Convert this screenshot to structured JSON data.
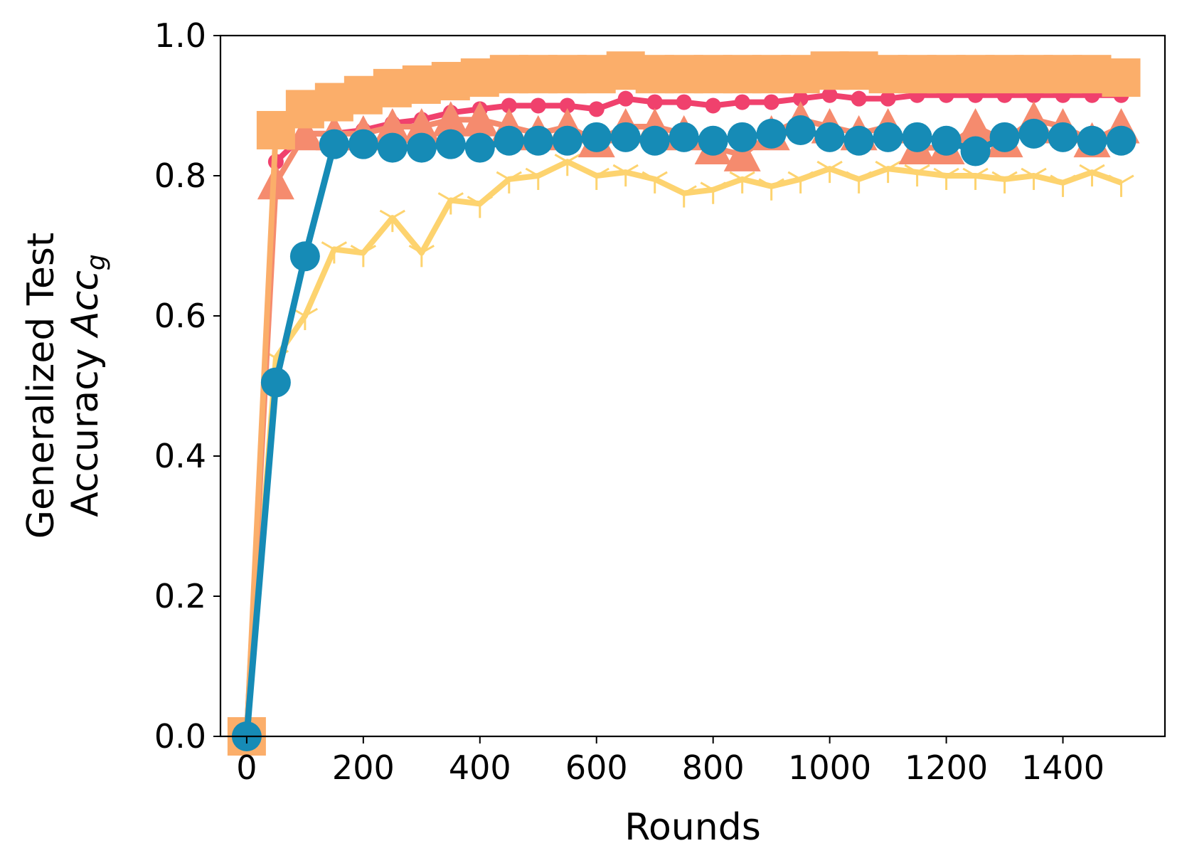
{
  "chart_data": {
    "type": "line",
    "xlabel": "Rounds",
    "ylabel_line1": "Generalized Test",
    "ylabel_line2_text": "Accuracy ",
    "ylabel_line2_math": "Acc",
    "ylabel_line2_sub": "g",
    "xlim": [
      -45,
      1575
    ],
    "ylim": [
      0.0,
      1.0
    ],
    "xticks": [
      0,
      200,
      400,
      600,
      800,
      1000,
      1200,
      1400
    ],
    "yticks": [
      0.0,
      0.2,
      0.4,
      0.6,
      0.8,
      1.0
    ],
    "ytick_labels": [
      "0.0",
      "0.2",
      "0.4",
      "0.6",
      "0.8",
      "1.0"
    ],
    "x": [
      0,
      50,
      100,
      150,
      200,
      250,
      300,
      350,
      400,
      450,
      500,
      550,
      600,
      650,
      700,
      750,
      800,
      850,
      900,
      950,
      1000,
      1050,
      1100,
      1150,
      1200,
      1250,
      1300,
      1350,
      1400,
      1450,
      1500
    ],
    "series": [
      {
        "color": "#FDD36F",
        "marker": "tri",
        "values": [
          0.0,
          0.54,
          0.6,
          0.695,
          0.69,
          0.74,
          0.69,
          0.765,
          0.76,
          0.795,
          0.8,
          0.82,
          0.8,
          0.805,
          0.795,
          0.775,
          0.78,
          0.795,
          0.785,
          0.795,
          0.81,
          0.795,
          0.81,
          0.805,
          0.8,
          0.8,
          0.795,
          0.8,
          0.79,
          0.805,
          0.79
        ]
      },
      {
        "color": "#F0416D",
        "marker": "circle-small",
        "values": [
          0.0,
          0.82,
          0.86,
          0.86,
          0.865,
          0.875,
          0.88,
          0.89,
          0.895,
          0.9,
          0.9,
          0.9,
          0.895,
          0.91,
          0.905,
          0.905,
          0.9,
          0.905,
          0.905,
          0.91,
          0.915,
          0.91,
          0.91,
          0.915,
          0.915,
          0.915,
          0.915,
          0.915,
          0.915,
          0.915,
          0.915
        ]
      },
      {
        "color": "#F58B6E",
        "marker": "triangle",
        "values": [
          0.0,
          0.79,
          0.86,
          0.86,
          0.86,
          0.87,
          0.87,
          0.88,
          0.88,
          0.87,
          0.86,
          0.87,
          0.85,
          0.87,
          0.87,
          0.86,
          0.84,
          0.83,
          0.86,
          0.88,
          0.87,
          0.86,
          0.87,
          0.84,
          0.84,
          0.87,
          0.85,
          0.88,
          0.87,
          0.85,
          0.87
        ]
      },
      {
        "color": "#FBAE6A",
        "marker": "square",
        "values": [
          0.0,
          0.865,
          0.895,
          0.905,
          0.915,
          0.925,
          0.93,
          0.935,
          0.94,
          0.945,
          0.945,
          0.945,
          0.945,
          0.95,
          0.945,
          0.945,
          0.945,
          0.945,
          0.945,
          0.945,
          0.95,
          0.95,
          0.945,
          0.945,
          0.945,
          0.945,
          0.945,
          0.945,
          0.945,
          0.945,
          0.94
        ]
      },
      {
        "color": "#168BB6",
        "marker": "circle-large",
        "values": [
          0.0,
          0.505,
          0.685,
          0.845,
          0.845,
          0.84,
          0.84,
          0.845,
          0.84,
          0.85,
          0.85,
          0.85,
          0.855,
          0.855,
          0.85,
          0.855,
          0.85,
          0.855,
          0.86,
          0.865,
          0.855,
          0.85,
          0.855,
          0.855,
          0.85,
          0.835,
          0.855,
          0.86,
          0.855,
          0.85,
          0.85
        ]
      }
    ]
  }
}
